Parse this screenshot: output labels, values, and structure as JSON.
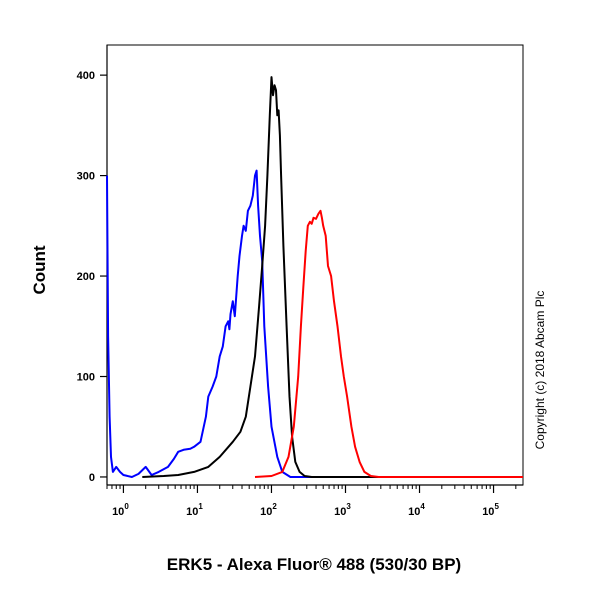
{
  "chart_data": {
    "type": "line",
    "title": "",
    "xlabel": "ERK5 - Alexa Fluor® 488 (530/30 BP)",
    "ylabel": "Count",
    "x_scale": "log",
    "xlim": [
      0.6,
      250000
    ],
    "ylim": [
      -8,
      430
    ],
    "grid": false,
    "y_ticks": [
      0,
      100,
      200,
      300,
      400
    ],
    "x_ticks": [
      {
        "value": 1,
        "base": "10",
        "exp": "0"
      },
      {
        "value": 10,
        "base": "10",
        "exp": "1"
      },
      {
        "value": 100,
        "base": "10",
        "exp": "2"
      },
      {
        "value": 1000,
        "base": "10",
        "exp": "3"
      },
      {
        "value": 10000,
        "base": "10",
        "exp": "4"
      },
      {
        "value": 100000,
        "base": "10",
        "exp": "5"
      }
    ],
    "series": [
      {
        "color": "#0000ff",
        "points": [
          [
            0.6,
            300
          ],
          [
            0.62,
            140
          ],
          [
            0.65,
            60
          ],
          [
            0.68,
            20
          ],
          [
            0.72,
            5
          ],
          [
            0.8,
            10
          ],
          [
            0.9,
            5
          ],
          [
            1.0,
            2
          ],
          [
            1.3,
            0
          ],
          [
            1.6,
            3
          ],
          [
            2.0,
            10
          ],
          [
            2.4,
            2
          ],
          [
            3.0,
            5
          ],
          [
            4.0,
            10
          ],
          [
            4.8,
            18
          ],
          [
            5.5,
            25
          ],
          [
            6.5,
            27
          ],
          [
            8.0,
            28
          ],
          [
            9.0,
            30
          ],
          [
            11,
            35
          ],
          [
            13,
            60
          ],
          [
            14,
            80
          ],
          [
            16,
            90
          ],
          [
            18,
            100
          ],
          [
            20,
            120
          ],
          [
            22,
            130
          ],
          [
            24,
            150
          ],
          [
            26,
            155
          ],
          [
            27,
            147
          ],
          [
            28,
            162
          ],
          [
            30,
            175
          ],
          [
            32,
            160
          ],
          [
            35,
            200
          ],
          [
            37,
            220
          ],
          [
            40,
            240
          ],
          [
            42,
            250
          ],
          [
            45,
            245
          ],
          [
            48,
            265
          ],
          [
            52,
            270
          ],
          [
            56,
            280
          ],
          [
            60,
            300
          ],
          [
            63,
            305
          ],
          [
            66,
            270
          ],
          [
            70,
            240
          ],
          [
            75,
            215
          ],
          [
            80,
            150
          ],
          [
            90,
            90
          ],
          [
            100,
            50
          ],
          [
            120,
            20
          ],
          [
            140,
            5
          ],
          [
            180,
            0
          ],
          [
            250000,
            0
          ]
        ]
      },
      {
        "color": "#000000",
        "points": [
          [
            1.8,
            0
          ],
          [
            3.5,
            1
          ],
          [
            5.5,
            2
          ],
          [
            9.0,
            5
          ],
          [
            14,
            10
          ],
          [
            20,
            20
          ],
          [
            30,
            35
          ],
          [
            38,
            45
          ],
          [
            45,
            60
          ],
          [
            52,
            90
          ],
          [
            60,
            120
          ],
          [
            68,
            170
          ],
          [
            75,
            210
          ],
          [
            82,
            250
          ],
          [
            88,
            300
          ],
          [
            95,
            360
          ],
          [
            100,
            398
          ],
          [
            105,
            380
          ],
          [
            110,
            390
          ],
          [
            115,
            385
          ],
          [
            120,
            360
          ],
          [
            125,
            365
          ],
          [
            130,
            340
          ],
          [
            135,
            300
          ],
          [
            145,
            230
          ],
          [
            160,
            150
          ],
          [
            175,
            80
          ],
          [
            190,
            40
          ],
          [
            210,
            15
          ],
          [
            240,
            5
          ],
          [
            280,
            1
          ],
          [
            350,
            0
          ],
          [
            250000,
            0
          ]
        ]
      },
      {
        "color": "#ff0000",
        "points": [
          [
            60,
            0
          ],
          [
            100,
            1
          ],
          [
            140,
            5
          ],
          [
            170,
            20
          ],
          [
            200,
            50
          ],
          [
            230,
            100
          ],
          [
            250,
            150
          ],
          [
            270,
            190
          ],
          [
            290,
            225
          ],
          [
            310,
            250
          ],
          [
            330,
            254
          ],
          [
            350,
            252
          ],
          [
            370,
            258
          ],
          [
            400,
            257
          ],
          [
            430,
            262
          ],
          [
            460,
            265
          ],
          [
            480,
            258
          ],
          [
            500,
            250
          ],
          [
            540,
            240
          ],
          [
            580,
            210
          ],
          [
            640,
            200
          ],
          [
            700,
            175
          ],
          [
            780,
            150
          ],
          [
            870,
            120
          ],
          [
            950,
            100
          ],
          [
            1050,
            80
          ],
          [
            1200,
            50
          ],
          [
            1350,
            30
          ],
          [
            1550,
            15
          ],
          [
            1800,
            5
          ],
          [
            2200,
            1
          ],
          [
            2800,
            0
          ],
          [
            250000,
            0
          ]
        ]
      }
    ]
  },
  "copyright": "Copyright (c) 2018 Abcam Plc",
  "colors": {
    "axis": "#000000",
    "background": "#ffffff"
  }
}
